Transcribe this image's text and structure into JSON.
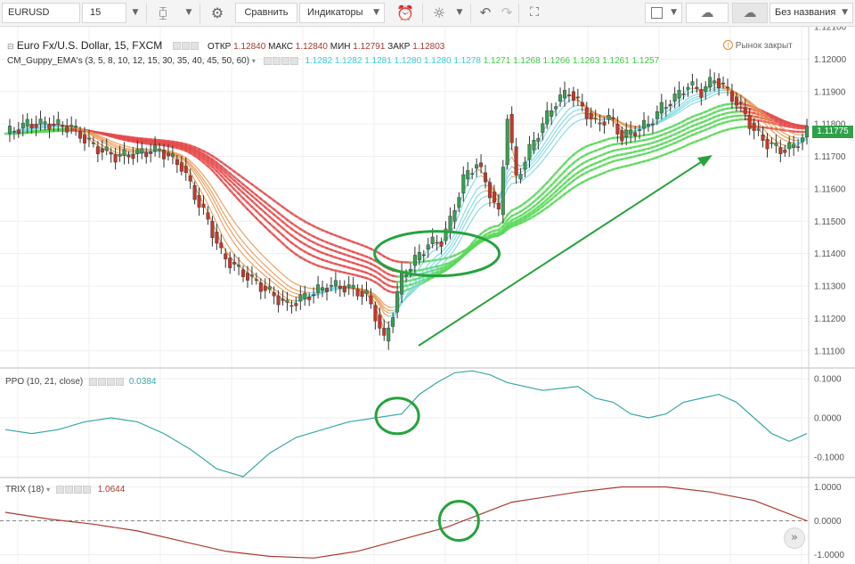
{
  "toolbar": {
    "symbol": "EURUSD",
    "interval": "15",
    "compare_label": "Сравнить",
    "indicators_label": "Индикаторы",
    "layout_name": "Без названия"
  },
  "header": {
    "title": "Euro Fx/U.S. Dollar, 15, FXCM",
    "open_label": "ОТКР",
    "open": "1.12840",
    "high_label": "МАКС",
    "high": "1.12840",
    "low_label": "МИН",
    "low": "1.12791",
    "close_label": "ЗАКР",
    "close": "1.12803",
    "market_status": "Рынок закрыт",
    "guppy_name": "CM_Guppy_EMA's (3, 5, 8, 10, 12, 15, 30, 35, 40, 45, 50, 60)",
    "guppy_values_short": [
      "1.1282",
      "1.1282",
      "1.1281",
      "1.1280",
      "1.1280",
      "1.1278"
    ],
    "guppy_values_long": [
      "1.1271",
      "1.1268",
      "1.1266",
      "1.1263",
      "1.1261",
      "1.1257"
    ],
    "last_price": "1.11775"
  },
  "ppo": {
    "label": "PPO (10, 21, close)",
    "value": "0.0384"
  },
  "trix": {
    "label": "TRIX (18)",
    "value": "1.0644"
  },
  "colors": {
    "bull": "#3d9c52",
    "bear": "#c0392b",
    "ppo": "#3aa6a6",
    "trix": "#a83a32",
    "annotation": "#26a33d",
    "guppy_red": "#e54b4b",
    "guppy_green": "#58d858",
    "guppy_orange": "#e99a55",
    "guppy_cyan": "#7ed9e0",
    "guppy_gray": "#9a9a9a"
  },
  "chart_data": [
    {
      "type": "candlestick",
      "name": "price",
      "title": "Euro Fx/U.S. Dollar, 15, FXCM",
      "ylim": [
        1.1105,
        1.121
      ],
      "yticks": [
        "1.12100",
        "1.12000",
        "1.11900",
        "1.11800",
        "1.11700",
        "1.11600",
        "1.11500",
        "1.11400",
        "1.11300",
        "1.11200",
        "1.11100"
      ],
      "ytick_values": [
        1.121,
        1.12,
        1.119,
        1.118,
        1.117,
        1.116,
        1.115,
        1.114,
        1.113,
        1.112,
        1.111
      ],
      "close_path": [
        [
          0,
          1.1177
        ],
        [
          5,
          1.118
        ],
        [
          10,
          1.118
        ],
        [
          15,
          1.1179
        ],
        [
          20,
          1.1173
        ],
        [
          25,
          1.117
        ],
        [
          30,
          1.1171
        ],
        [
          35,
          1.1172
        ],
        [
          40,
          1.1167
        ],
        [
          43,
          1.1158
        ],
        [
          46,
          1.115
        ],
        [
          49,
          1.114
        ],
        [
          52,
          1.1136
        ],
        [
          55,
          1.1133
        ],
        [
          58,
          1.113
        ],
        [
          61,
          1.1127
        ],
        [
          64,
          1.1124
        ],
        [
          67,
          1.1126
        ],
        [
          70,
          1.1128
        ],
        [
          73,
          1.113
        ],
        [
          76,
          1.113
        ],
        [
          79,
          1.1129
        ],
        [
          82,
          1.1127
        ],
        [
          84,
          1.1121
        ],
        [
          86,
          1.1113
        ],
        [
          88,
          1.1122
        ],
        [
          90,
          1.1133
        ],
        [
          93,
          1.1138
        ],
        [
          96,
          1.1143
        ],
        [
          99,
          1.1144
        ],
        [
          101,
          1.115
        ],
        [
          104,
          1.1163
        ],
        [
          107,
          1.1168
        ],
        [
          110,
          1.1159
        ],
        [
          112,
          1.1152
        ],
        [
          114,
          1.1183
        ],
        [
          116,
          1.1163
        ],
        [
          119,
          1.1172
        ],
        [
          122,
          1.118
        ],
        [
          125,
          1.1187
        ],
        [
          128,
          1.119
        ],
        [
          131,
          1.1185
        ],
        [
          134,
          1.118
        ],
        [
          137,
          1.1182
        ],
        [
          140,
          1.1176
        ],
        [
          143,
          1.1178
        ],
        [
          146,
          1.118
        ],
        [
          149,
          1.1185
        ],
        [
          152,
          1.1188
        ],
        [
          155,
          1.1192
        ],
        [
          158,
          1.119
        ],
        [
          161,
          1.1194
        ],
        [
          164,
          1.119
        ],
        [
          167,
          1.1185
        ],
        [
          170,
          1.1178
        ],
        [
          173,
          1.1174
        ],
        [
          176,
          1.1172
        ],
        [
          179,
          1.1173
        ],
        [
          182,
          1.11775
        ]
      ],
      "guppy_short": {
        "color_down": "#e99a55",
        "color_up": "#7ed9e0",
        "offsets": [
          0,
          8e-05,
          0.00016,
          0.00024,
          0.00032,
          0.0004
        ]
      },
      "guppy_long": {
        "color_down": "#e54b4b",
        "color_up": "#58d858",
        "offsets": [
          0.0016,
          0.00175,
          0.0019,
          0.00205,
          0.0022,
          0.00235
        ]
      },
      "last_price": 1.11775
    },
    {
      "type": "line",
      "name": "PPO (10, 21, close)",
      "ylim": [
        -0.15,
        0.125
      ],
      "yticks": [
        "0.1000",
        "0.0000",
        "-0.1000"
      ],
      "ytick_values": [
        0.1,
        0,
        -0.1
      ],
      "x": [
        0,
        6,
        12,
        18,
        24,
        30,
        36,
        42,
        48,
        54,
        60,
        66,
        72,
        78,
        84,
        90,
        94,
        98,
        102,
        106,
        110,
        114,
        118,
        122,
        126,
        130,
        134,
        138,
        142,
        146,
        150,
        154,
        158,
        162,
        166,
        170,
        174,
        178,
        182
      ],
      "values": [
        -0.03,
        -0.04,
        -0.03,
        -0.01,
        0.0,
        -0.01,
        -0.04,
        -0.08,
        -0.13,
        -0.15,
        -0.09,
        -0.05,
        -0.03,
        -0.01,
        0.0,
        0.01,
        0.06,
        0.09,
        0.115,
        0.12,
        0.11,
        0.09,
        0.08,
        0.07,
        0.075,
        0.08,
        0.05,
        0.04,
        0.01,
        0.0,
        0.01,
        0.04,
        0.05,
        0.06,
        0.04,
        0.0,
        -0.04,
        -0.06,
        -0.04
      ],
      "color": "#3aa6a6"
    },
    {
      "type": "line",
      "name": "TRIX (18)",
      "ylim": [
        -1.25,
        1.25
      ],
      "yticks": [
        "1.0000",
        "0.0000",
        "-1.0000"
      ],
      "ytick_values": [
        1,
        0,
        -1
      ],
      "x": [
        0,
        10,
        20,
        30,
        40,
        50,
        60,
        70,
        80,
        90,
        100,
        110,
        115,
        120,
        130,
        140,
        150,
        160,
        170,
        176,
        182
      ],
      "values": [
        0.25,
        0.05,
        -0.1,
        -0.3,
        -0.6,
        -0.9,
        -1.05,
        -1.1,
        -0.9,
        -0.55,
        -0.2,
        0.3,
        0.55,
        0.65,
        0.85,
        1.0,
        1.0,
        0.85,
        0.6,
        0.3,
        0.0
      ],
      "zero_line": true,
      "color": "#a83a32"
    }
  ]
}
